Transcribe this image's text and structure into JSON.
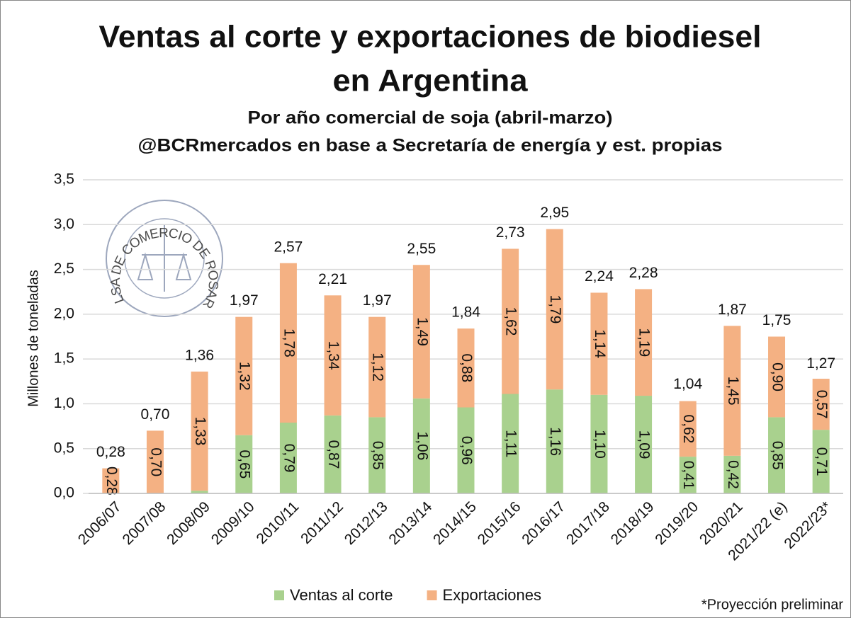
{
  "chart_data": {
    "type": "stacked_bar",
    "title": [
      "Ventas al corte y exportaciones de biodiesel",
      "en Argentina"
    ],
    "subtitle": [
      "Por año comercial de soja (abril-marzo)",
      "@BCRmercados en base a Secretaría de energía y est. propias"
    ],
    "y_label": "Millones de toneladas",
    "watermark": "BOLSA DE COMERCIO DE ROSARIO",
    "footnote": "*Proyección preliminar",
    "categories": [
      "2006/07",
      "2007/08",
      "2008/09",
      "2009/10",
      "2010/11",
      "2011/12",
      "2012/13",
      "2013/14",
      "2014/15",
      "2015/16",
      "2016/17",
      "2017/18",
      "2018/19",
      "2019/20",
      "2020/21",
      "2021/22 (e)",
      "2022/23*"
    ],
    "series": [
      {
        "name": "Ventas al corte",
        "color": "#a9d18e",
        "values": [
          null,
          null,
          0.03,
          0.65,
          0.79,
          0.87,
          0.85,
          1.06,
          0.96,
          1.11,
          1.16,
          1.1,
          1.09,
          0.41,
          0.42,
          0.85,
          0.71
        ],
        "value_labels": [
          null,
          null,
          null,
          "0,65",
          "0,79",
          "0,87",
          "0,85",
          "1,06",
          "0,96",
          "1,11",
          "1,16",
          "1,10",
          "1,09",
          "0,41",
          "0,42",
          "0,85",
          "0,71"
        ]
      },
      {
        "name": "Exportaciones",
        "color": "#f4b183",
        "values": [
          0.28,
          0.7,
          1.33,
          1.32,
          1.78,
          1.34,
          1.12,
          1.49,
          0.88,
          1.62,
          1.79,
          1.14,
          1.19,
          0.62,
          1.45,
          0.9,
          0.57
        ],
        "value_labels": [
          "0,28",
          "0,70",
          "1,33",
          "1,32",
          "1,78",
          "1,34",
          "1,12",
          "1,49",
          "0,88",
          "1,62",
          "1,79",
          "1,14",
          "1,19",
          "0,62",
          "1,45",
          "0,90",
          "0,57"
        ]
      }
    ],
    "totals": [
      0.28,
      0.7,
      1.36,
      1.97,
      2.57,
      2.21,
      1.97,
      2.55,
      1.84,
      2.73,
      2.95,
      2.24,
      2.28,
      1.04,
      1.87,
      1.75,
      1.27
    ],
    "total_labels": [
      "0,28",
      "0,70",
      "1,36",
      "1,97",
      "2,57",
      "2,21",
      "1,97",
      "2,55",
      "1,84",
      "2,73",
      "2,95",
      "2,24",
      "2,28",
      "1,04",
      "1,87",
      "1,75",
      "1,27"
    ],
    "ylim": [
      0,
      3.5
    ],
    "yticks": [
      {
        "value": 0,
        "label": "0,0"
      },
      {
        "value": 0.5,
        "label": "0,5"
      },
      {
        "value": 1,
        "label": "1,0"
      },
      {
        "value": 1.5,
        "label": "1,5"
      },
      {
        "value": 2,
        "label": "2,0"
      },
      {
        "value": 2.5,
        "label": "2,5"
      },
      {
        "value": 3,
        "label": "3,0"
      },
      {
        "value": 3.5,
        "label": "3,5"
      }
    ],
    "grid": true,
    "legend": "bottom"
  }
}
